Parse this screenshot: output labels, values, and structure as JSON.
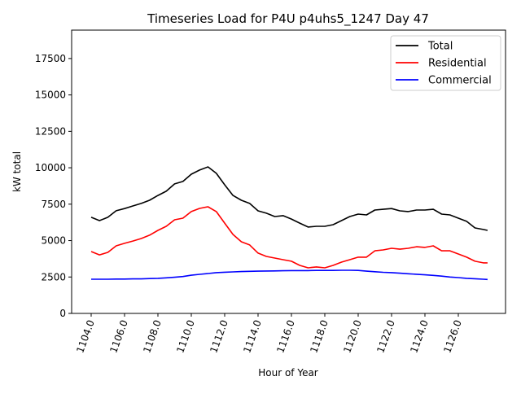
{
  "chart_data": {
    "type": "line",
    "title": "Timeseries Load for P4U p4uhs5_1247  Day 47",
    "xlabel": "Hour of Year",
    "ylabel": "kW total",
    "xlim": [
      1102.83,
      1128.83
    ],
    "ylim": [
      0,
      19450
    ],
    "xticks": [
      1104,
      1106,
      1108,
      1110,
      1112,
      1114,
      1116,
      1118,
      1120,
      1122,
      1124,
      1126
    ],
    "xtick_labels": [
      "1104.0",
      "1106.0",
      "1108.0",
      "1110.0",
      "1112.0",
      "1114.0",
      "1116.0",
      "1118.0",
      "1120.0",
      "1122.0",
      "1124.0",
      "1126.0"
    ],
    "yticks": [
      0,
      2500,
      5000,
      7500,
      10000,
      12500,
      15000,
      17500
    ],
    "ytick_labels": [
      "0",
      "2500",
      "5000",
      "7500",
      "10000",
      "12500",
      "15000",
      "17500"
    ],
    "grid": false,
    "legend_position": "top-right",
    "x": [
      1104,
      1104.5,
      1105,
      1105.5,
      1106,
      1106.5,
      1107,
      1107.5,
      1108,
      1108.5,
      1109,
      1109.5,
      1110,
      1110.5,
      1111,
      1111.5,
      1112,
      1112.5,
      1113,
      1113.5,
      1114,
      1114.5,
      1115,
      1115.5,
      1116,
      1116.5,
      1117,
      1117.5,
      1118,
      1118.5,
      1119,
      1119.5,
      1120,
      1120.5,
      1121,
      1121.5,
      1122,
      1122.5,
      1123,
      1123.5,
      1124,
      1124.5,
      1125,
      1125.5,
      1126,
      1126.5,
      1127,
      1127.5,
      1127.75
    ],
    "series": [
      {
        "name": "Total",
        "color": "#000000",
        "values": [
          6600,
          6370,
          6600,
          7050,
          7200,
          7380,
          7550,
          7770,
          8100,
          8390,
          8890,
          9060,
          9560,
          9840,
          10060,
          9620,
          8830,
          8100,
          7770,
          7550,
          7040,
          6880,
          6650,
          6710,
          6480,
          6200,
          5930,
          5980,
          5980,
          6090,
          6370,
          6650,
          6820,
          6760,
          7100,
          7150,
          7200,
          7040,
          6990,
          7100,
          7100,
          7150,
          6820,
          6760,
          6540,
          6320,
          5870,
          5760,
          5700
        ]
      },
      {
        "name": "Residential",
        "color": "#ff0000",
        "values": [
          4250,
          4020,
          4190,
          4640,
          4810,
          4970,
          5140,
          5370,
          5700,
          5980,
          6430,
          6540,
          6990,
          7210,
          7320,
          6990,
          6200,
          5420,
          4920,
          4700,
          4140,
          3910,
          3800,
          3690,
          3580,
          3300,
          3130,
          3190,
          3130,
          3300,
          3520,
          3690,
          3860,
          3860,
          4300,
          4360,
          4470,
          4410,
          4470,
          4580,
          4530,
          4640,
          4300,
          4300,
          4080,
          3860,
          3580,
          3470,
          3470
        ]
      },
      {
        "name": "Commercial",
        "color": "#0000ff",
        "values": [
          2350,
          2350,
          2350,
          2360,
          2360,
          2370,
          2370,
          2390,
          2410,
          2440,
          2480,
          2530,
          2620,
          2680,
          2740,
          2800,
          2830,
          2850,
          2870,
          2890,
          2900,
          2910,
          2920,
          2930,
          2940,
          2940,
          2940,
          2950,
          2950,
          2950,
          2960,
          2960,
          2950,
          2900,
          2860,
          2820,
          2800,
          2760,
          2720,
          2690,
          2650,
          2610,
          2560,
          2500,
          2460,
          2410,
          2380,
          2350,
          2330
        ]
      }
    ]
  }
}
